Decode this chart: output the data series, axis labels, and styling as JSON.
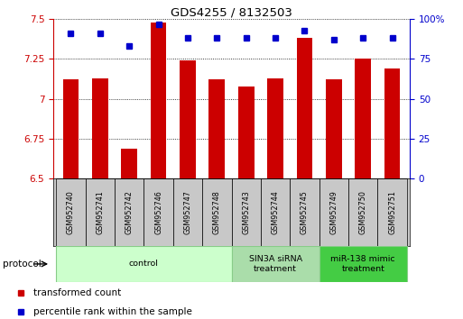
{
  "title": "GDS4255 / 8132503",
  "samples": [
    "GSM952740",
    "GSM952741",
    "GSM952742",
    "GSM952746",
    "GSM952747",
    "GSM952748",
    "GSM952743",
    "GSM952744",
    "GSM952745",
    "GSM952749",
    "GSM952750",
    "GSM952751"
  ],
  "transformed_counts": [
    7.12,
    7.13,
    6.69,
    7.48,
    7.24,
    7.12,
    7.08,
    7.13,
    7.38,
    7.12,
    7.25,
    7.19
  ],
  "percentile_ranks": [
    91,
    91,
    83,
    97,
    88,
    88,
    88,
    88,
    93,
    87,
    88,
    88
  ],
  "bar_color": "#cc0000",
  "dot_color": "#0000cc",
  "ylim_left": [
    6.5,
    7.5
  ],
  "ylim_right": [
    0,
    100
  ],
  "yticks_left": [
    6.5,
    6.75,
    7.0,
    7.25,
    7.5
  ],
  "yticks_right": [
    0,
    25,
    50,
    75,
    100
  ],
  "ytick_labels_left": [
    "6.5",
    "6.75",
    "7",
    "7.25",
    "7.5"
  ],
  "ytick_labels_right": [
    "0",
    "25",
    "50",
    "75",
    "100%"
  ],
  "group_bounds": [
    {
      "start": 0,
      "end": 6,
      "color": "#ccffcc",
      "border": "#88cc88",
      "label": "control"
    },
    {
      "start": 6,
      "end": 9,
      "color": "#aaddaa",
      "border": "#88cc88",
      "label": "SIN3A siRNA\ntreatment"
    },
    {
      "start": 9,
      "end": 12,
      "color": "#44cc44",
      "border": "#88cc88",
      "label": "miR-138 mimic\ntreatment"
    }
  ],
  "legend_items": [
    {
      "label": "transformed count",
      "color": "#cc0000"
    },
    {
      "label": "percentile rank within the sample",
      "color": "#0000cc"
    }
  ],
  "background_color": "#ffffff",
  "tick_color_left": "#cc0000",
  "tick_color_right": "#0000cc",
  "sample_box_color": "#c8c8c8"
}
